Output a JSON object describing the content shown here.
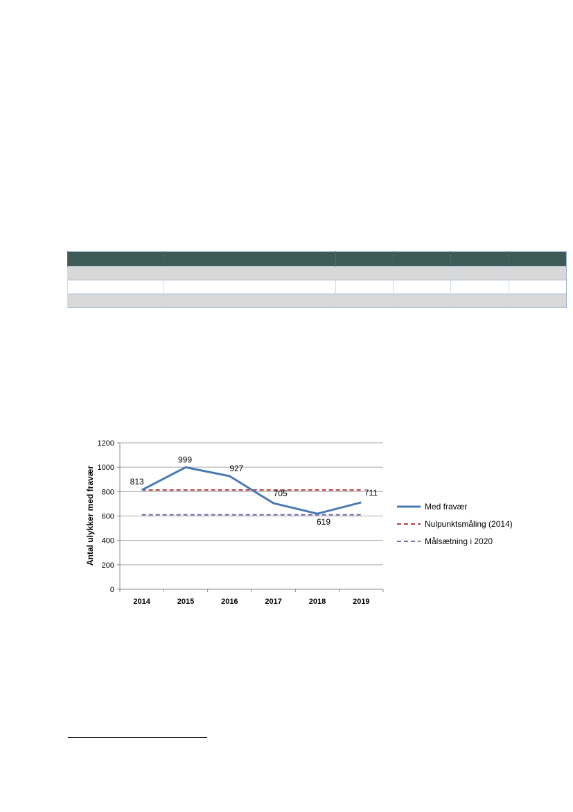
{
  "table": {
    "columns": 6,
    "rows": 3
  },
  "chart_data": {
    "type": "line",
    "x": [
      "2014",
      "2015",
      "2016",
      "2017",
      "2018",
      "2019"
    ],
    "ylabel": "Antal ulykker med fravær",
    "ylim": [
      0,
      1200
    ],
    "yticks": [
      0,
      200,
      400,
      600,
      800,
      1000,
      1200
    ],
    "grid": true,
    "legend_position": "right",
    "series": [
      {
        "name": "Med fravær",
        "values": [
          813,
          999,
          927,
          705,
          619,
          711
        ],
        "color": "#4a7ab5",
        "style": "solid",
        "labels": [
          "813",
          "999",
          "927",
          "705",
          "619",
          "711"
        ]
      },
      {
        "name": "Nulpunktsmåling (2014)",
        "values": [
          813,
          813,
          813,
          813,
          813,
          813
        ],
        "color": "#b5403f",
        "style": "dashed"
      },
      {
        "name": "Målsætning i 2020",
        "values": [
          610,
          610,
          610,
          610,
          610,
          610
        ],
        "color": "#7a6bb3",
        "style": "dashed"
      }
    ]
  }
}
